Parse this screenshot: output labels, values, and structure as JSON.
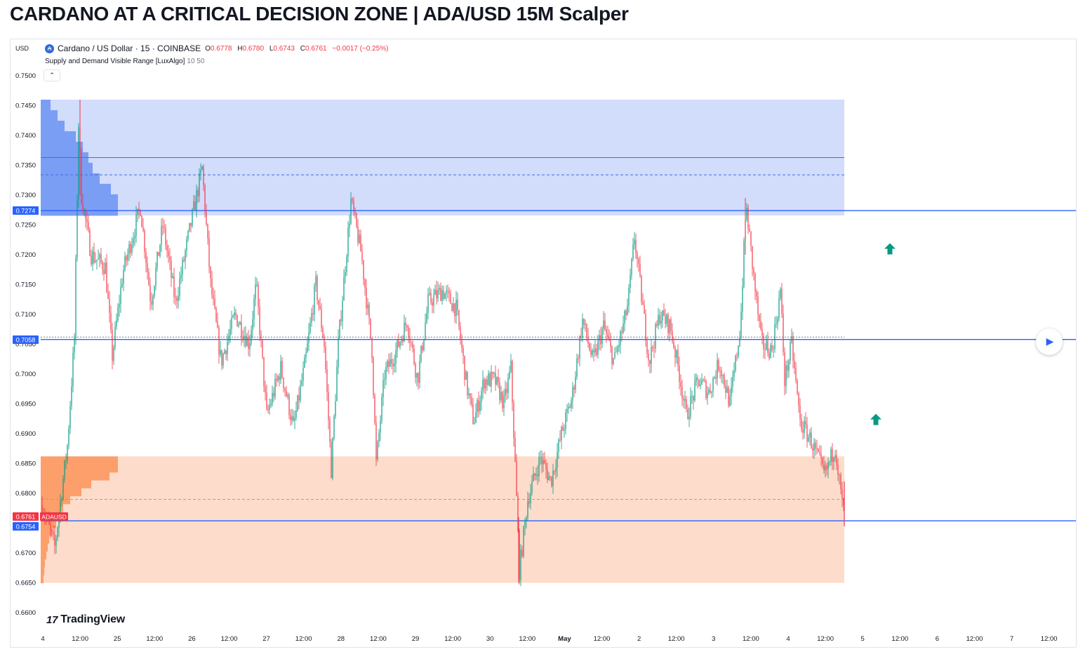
{
  "page": {
    "title": "CARDANO AT A CRITICAL DECISION ZONE | ADA/USD 15M Scalper"
  },
  "header": {
    "currency": "USD",
    "symbol_icon": "cardano-logo-icon",
    "symbol": "Cardano / US Dollar · 15 · COINBASE",
    "ohlc": {
      "open_label": "O",
      "open": "0.6778",
      "high_label": "H",
      "high": "0.6780",
      "low_label": "L",
      "low": "0.6743",
      "close_label": "C",
      "close": "0.6761",
      "change": "−0.0017 (−0.25%)"
    },
    "indicator_name": "Supply and Demand Visible Range [LuxAlgo]",
    "indicator_params": "10 50",
    "collapse_icon": "chevron-up-icon"
  },
  "branding": {
    "logo_icon": "tradingview-logo-icon",
    "logo_text": "TradingView"
  },
  "colors": {
    "up_candle": "#089981",
    "down_candle": "#f23645",
    "supply_zone": "#d2dcfb",
    "supply_profile": "#7b9ef5",
    "supply_line": "#3f6ee0",
    "demand_zone": "#fddccb",
    "demand_profile": "#fd9f6b",
    "demand_line": "#f08a55",
    "horizontal_line": "#2962ff",
    "price_label_blue": "#2962ff",
    "price_label_red": "#f23645",
    "arrow": "#089981"
  },
  "play_icon": "play-icon",
  "chart_data": {
    "type": "candlestick",
    "y_axis": {
      "range": [
        0.66,
        0.75
      ],
      "ticks": [
        "0.7500",
        "0.7450",
        "0.7400",
        "0.7350",
        "0.7300",
        "0.7250",
        "0.7200",
        "0.7150",
        "0.7100",
        "0.7050",
        "0.7000",
        "0.6950",
        "0.6900",
        "0.6850",
        "0.6800",
        "0.6700",
        "0.6650",
        "0.6600"
      ],
      "tick_values": [
        0.75,
        0.745,
        0.74,
        0.735,
        0.73,
        0.725,
        0.72,
        0.715,
        0.71,
        0.705,
        0.7,
        0.695,
        0.69,
        0.685,
        0.68,
        0.67,
        0.665,
        0.66
      ]
    },
    "x_axis": {
      "ticks": [
        "4",
        "12:00",
        "25",
        "12:00",
        "26",
        "12:00",
        "27",
        "12:00",
        "28",
        "12:00",
        "29",
        "12:00",
        "30",
        "12:00",
        "May",
        "12:00",
        "2",
        "12:00",
        "3",
        "12:00",
        "4",
        "12:00",
        "5",
        "12:00",
        "6",
        "12:00",
        "7",
        "12:00"
      ],
      "bold": [
        "May"
      ]
    },
    "price_labels": [
      {
        "value": 0.7274,
        "text": "0.7274",
        "color": "blue"
      },
      {
        "value": 0.7058,
        "text": "0.7058",
        "color": "blue"
      },
      {
        "value": 0.6761,
        "text": "0.6761",
        "color": "red",
        "tag": "ADAUSD"
      },
      {
        "value": 0.6754,
        "text": "0.6754",
        "color": "blue"
      }
    ],
    "horizontal_lines": [
      0.7274,
      0.7058,
      0.6754
    ],
    "zones": [
      {
        "name": "supply",
        "top": 0.746,
        "bottom": 0.7266,
        "avg_line": 0.7363,
        "dashed_line": 0.7334
      },
      {
        "name": "demand",
        "top": 0.6862,
        "bottom": 0.665,
        "avg_line": 0.679,
        "dashed_line": 0.679
      }
    ],
    "dotted_line": 0.7062,
    "candles_summary": {
      "last_close": 0.6761,
      "swing_points": [
        {
          "label": "start",
          "value": 0.678
        },
        {
          "label": "spike high",
          "value": 0.746
        },
        {
          "label": "peak day 26",
          "value": 0.7345
        },
        {
          "label": "high day 28",
          "value": 0.729
        },
        {
          "label": "low day 28",
          "value": 0.685
        },
        {
          "label": "low day 30",
          "value": 0.665
        },
        {
          "label": "high day 2",
          "value": 0.725
        },
        {
          "label": "high day 3",
          "value": 0.7295
        },
        {
          "label": "last close",
          "value": 0.6761
        }
      ]
    },
    "markers": [
      {
        "type": "arrow-up",
        "value": 0.721
      },
      {
        "type": "arrow-up",
        "value": 0.6924
      }
    ]
  }
}
